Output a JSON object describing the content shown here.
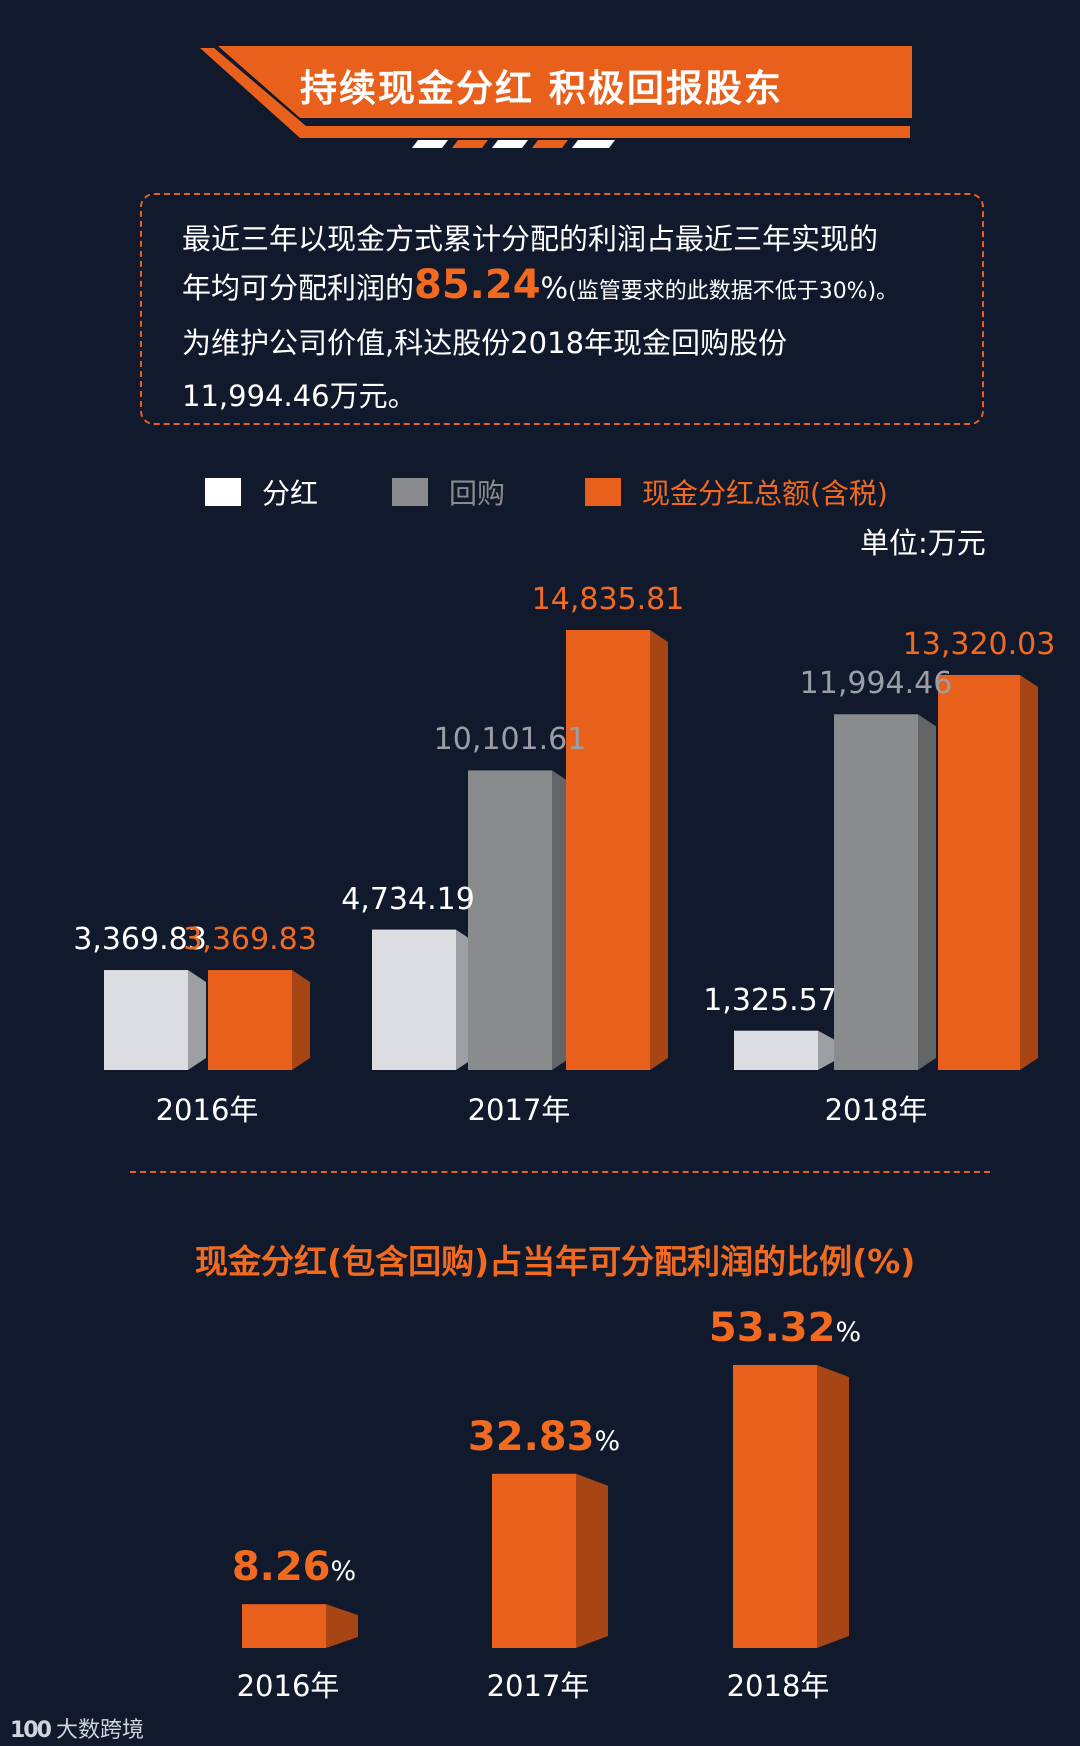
{
  "title": "持续现金分红 积极回报股东",
  "info": {
    "line1": "最近三年以现金方式累计分配的利润占最近三年实现的",
    "line2_pre": "年均可分配利润的",
    "line2_value": "85.24",
    "line2_pct": "%",
    "line2_note": "(监管要求的此数据不低于30%)。",
    "line3": "为维护公司价值,科达股份2018年现金回购股份",
    "line4": "11,994.46万元。"
  },
  "unit": "单位:万元",
  "colors": {
    "background": "#101a2c",
    "orange": "#e8601c",
    "white_bar": "#dcdde1",
    "grey_bar": "#8a8b8d"
  },
  "chart_data": [
    {
      "type": "bar",
      "title": "",
      "categories": [
        "2016年",
        "2017年",
        "2018年"
      ],
      "series": [
        {
          "name": "分红",
          "values": [
            3369.83,
            4734.19,
            1325.57
          ],
          "labels": [
            "3,369.83",
            "4,734.19",
            "1,325.57"
          ],
          "color": "#dcdde1"
        },
        {
          "name": "回购",
          "values": [
            null,
            10101.61,
            11994.46
          ],
          "labels": [
            "",
            "10,101.61",
            "11,994.46"
          ],
          "color": "#8a8b8d"
        },
        {
          "name": "现金分红总额(含税)",
          "values": [
            3369.83,
            14835.81,
            13320.03
          ],
          "labels": [
            "3,369.83",
            "14,835.81",
            "13,320.03"
          ],
          "color": "#e8601c"
        }
      ],
      "legend_position": "top",
      "ylim": [
        0,
        16000
      ],
      "grid": false
    },
    {
      "type": "bar",
      "title": "现金分红(包含回购)占当年可分配利润的比例(%)",
      "categories": [
        "2016年",
        "2017年",
        "2018年"
      ],
      "values": [
        8.26,
        32.83,
        53.32
      ],
      "labels": [
        "8.26",
        "32.83",
        "53.32"
      ],
      "value_suffix": "%",
      "ylim": [
        0,
        60
      ],
      "grid": false
    }
  ],
  "watermark": {
    "icon": "100",
    "text": "大数跨境"
  }
}
